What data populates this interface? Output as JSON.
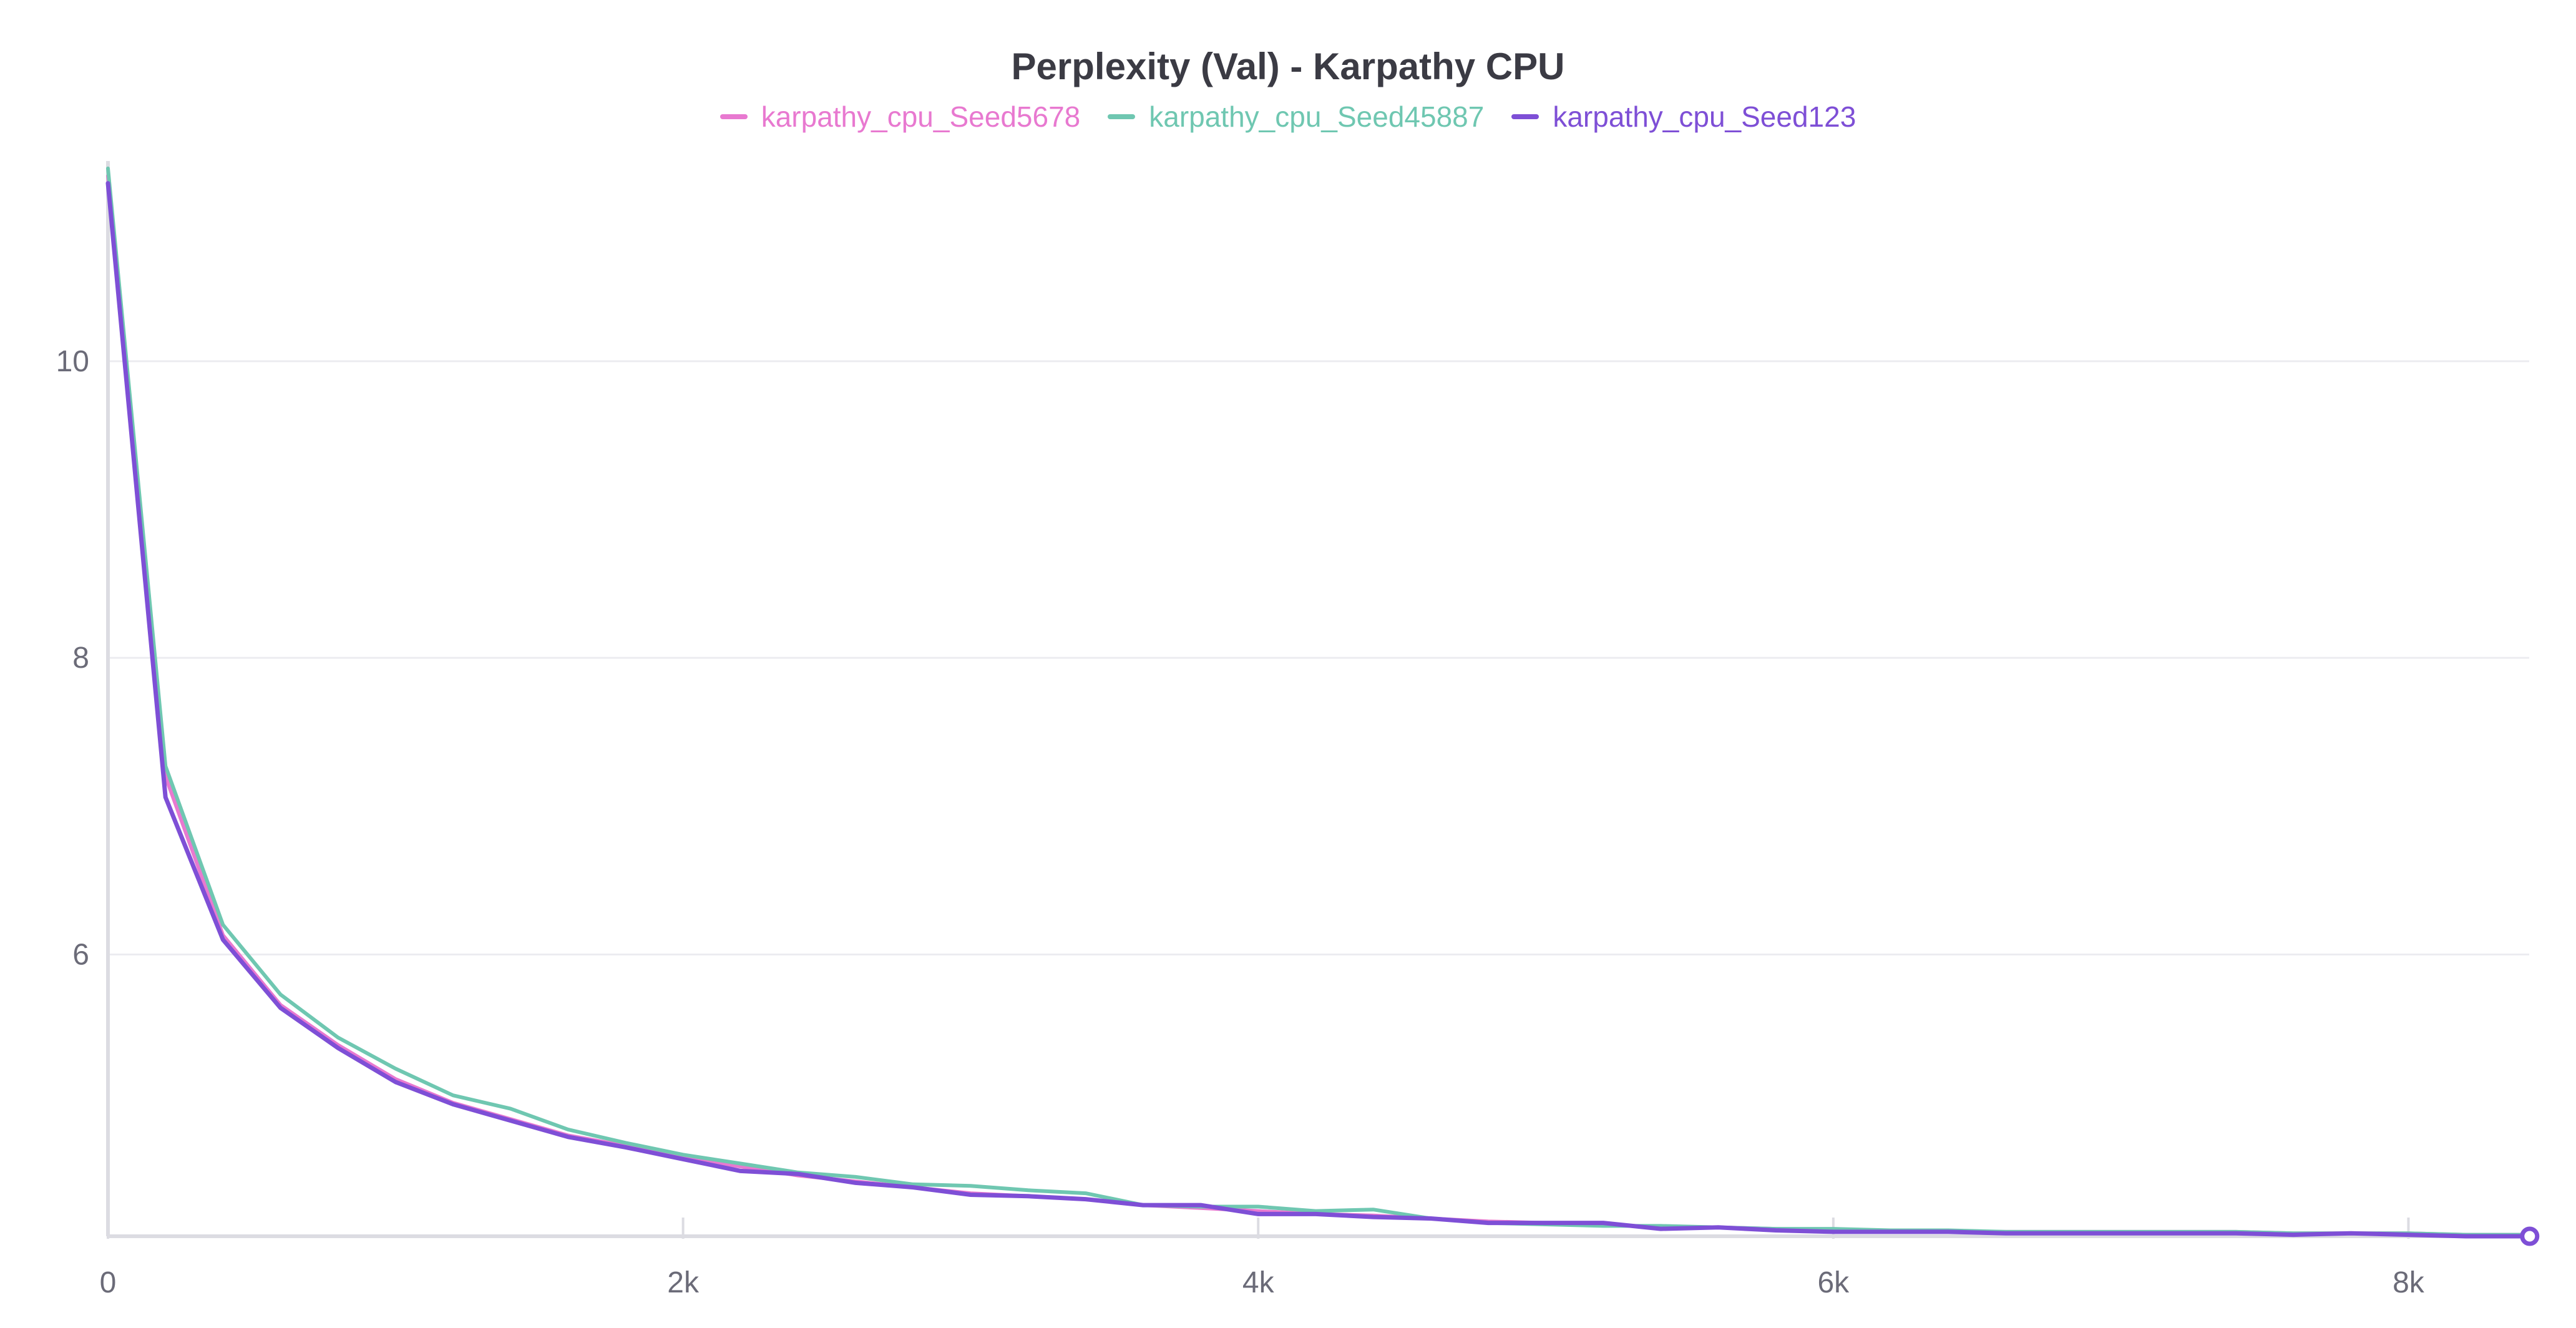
{
  "chart_data": {
    "type": "line",
    "title": "Perplexity (Val) - Karpathy CPU",
    "xlabel": "",
    "ylabel": "",
    "xlim": [
      0,
      8420
    ],
    "ylim": [
      4.1,
      11.35
    ],
    "x_ticks": [
      {
        "value": 0,
        "label": "0"
      },
      {
        "value": 2000,
        "label": "2k"
      },
      {
        "value": 4000,
        "label": "4k"
      },
      {
        "value": 6000,
        "label": "6k"
      },
      {
        "value": 8000,
        "label": "8k"
      }
    ],
    "y_ticks": [
      {
        "value": 6,
        "label": "6"
      },
      {
        "value": 8,
        "label": "8"
      },
      {
        "value": 10,
        "label": "10"
      }
    ],
    "grid": true,
    "legend_position": "top-center",
    "x": [
      0,
      200,
      400,
      600,
      800,
      1000,
      1200,
      1400,
      1600,
      1800,
      2000,
      2200,
      2400,
      2600,
      2800,
      3000,
      3200,
      3400,
      3600,
      3800,
      4000,
      4200,
      4400,
      4600,
      4800,
      5000,
      5200,
      5400,
      5600,
      5800,
      6000,
      6200,
      6400,
      6600,
      6800,
      7000,
      7200,
      7400,
      7600,
      7800,
      8000,
      8200,
      8400
    ],
    "series": [
      {
        "name": "karpathy_cpu_Seed5678",
        "color": "#e879d0",
        "values": [
          11.25,
          7.2,
          6.13,
          5.66,
          5.39,
          5.16,
          5.0,
          4.89,
          4.78,
          4.71,
          4.63,
          4.57,
          4.51,
          4.47,
          4.43,
          4.39,
          4.37,
          4.35,
          4.31,
          4.29,
          4.27,
          4.25,
          4.24,
          4.22,
          4.2,
          4.19,
          4.18,
          4.16,
          4.16,
          4.15,
          4.14,
          4.14,
          4.13,
          4.13,
          4.13,
          4.13,
          4.13,
          4.13,
          4.12,
          4.12,
          4.12,
          4.11,
          4.11
        ]
      },
      {
        "name": "karpathy_cpu_Seed45887",
        "color": "#6fc7b1",
        "values": [
          11.3,
          7.27,
          6.2,
          5.73,
          5.44,
          5.23,
          5.05,
          4.96,
          4.82,
          4.73,
          4.65,
          4.59,
          4.53,
          4.5,
          4.45,
          4.44,
          4.41,
          4.39,
          4.31,
          4.3,
          4.3,
          4.27,
          4.28,
          4.22,
          4.19,
          4.18,
          4.17,
          4.17,
          4.16,
          4.15,
          4.15,
          4.14,
          4.14,
          4.13,
          4.13,
          4.13,
          4.13,
          4.13,
          4.12,
          4.12,
          4.12,
          4.11,
          4.11
        ]
      },
      {
        "name": "karpathy_cpu_Seed123",
        "color": "#7e4fd6",
        "values": [
          11.2,
          7.06,
          6.1,
          5.64,
          5.37,
          5.14,
          4.99,
          4.88,
          4.77,
          4.7,
          4.62,
          4.54,
          4.52,
          4.46,
          4.43,
          4.38,
          4.37,
          4.35,
          4.31,
          4.31,
          4.25,
          4.25,
          4.23,
          4.22,
          4.19,
          4.19,
          4.19,
          4.15,
          4.16,
          4.14,
          4.13,
          4.13,
          4.13,
          4.12,
          4.12,
          4.12,
          4.12,
          4.12,
          4.11,
          4.12,
          4.11,
          4.1,
          4.1
        ]
      }
    ]
  }
}
